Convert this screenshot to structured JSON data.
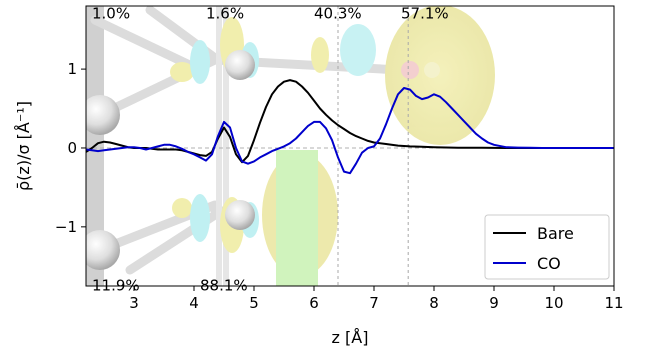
{
  "chart_data": {
    "type": "line",
    "xlabel": "z [Å]",
    "ylabel": "ρ̄(z)/σ [Å⁻¹]",
    "xlim": [
      2.2,
      11.0
    ],
    "ylim": [
      -1.75,
      1.8
    ],
    "xticks": [
      3,
      4,
      5,
      6,
      7,
      8,
      9,
      10,
      11
    ],
    "yticks": [
      -1,
      0,
      1
    ],
    "ytick_labels": [
      "−1",
      "0",
      "1"
    ],
    "grid": false,
    "legend_position": "lower-right",
    "reference_lines": {
      "horizontal_y": 0,
      "vertical_x": [
        6.4,
        7.57
      ]
    },
    "series": [
      {
        "name": "Bare",
        "color": "#000000",
        "x": [
          2.2,
          2.3,
          2.4,
          2.5,
          2.6,
          2.7,
          2.8,
          2.9,
          3.0,
          3.1,
          3.2,
          3.3,
          3.4,
          3.5,
          3.6,
          3.7,
          3.8,
          3.9,
          4.0,
          4.1,
          4.2,
          4.3,
          4.4,
          4.5,
          4.6,
          4.7,
          4.8,
          4.9,
          5.0,
          5.1,
          5.2,
          5.3,
          5.4,
          5.5,
          5.6,
          5.7,
          5.8,
          5.9,
          6.0,
          6.1,
          6.2,
          6.3,
          6.4,
          6.5,
          6.6,
          6.7,
          6.8,
          6.9,
          7.0,
          7.2,
          7.4,
          7.6,
          7.8,
          8.0,
          8.2,
          8.4,
          8.6,
          8.8,
          9.0,
          9.2,
          9.5,
          10.0,
          10.5,
          11.0
        ],
        "values": [
          -0.05,
          0.0,
          0.06,
          0.08,
          0.07,
          0.05,
          0.03,
          0.01,
          0.0,
          0.0,
          0.0,
          -0.01,
          -0.02,
          -0.02,
          -0.02,
          -0.02,
          -0.03,
          -0.05,
          -0.07,
          -0.09,
          -0.1,
          -0.05,
          0.12,
          0.26,
          0.14,
          -0.08,
          -0.18,
          -0.1,
          0.1,
          0.32,
          0.52,
          0.68,
          0.78,
          0.84,
          0.86,
          0.84,
          0.78,
          0.7,
          0.6,
          0.5,
          0.42,
          0.35,
          0.29,
          0.24,
          0.19,
          0.15,
          0.12,
          0.09,
          0.07,
          0.05,
          0.03,
          0.02,
          0.015,
          0.01,
          0.006,
          0.004,
          0.003,
          0.002,
          0.001,
          0.0,
          0.0,
          0.0,
          0.0,
          0.0
        ]
      },
      {
        "name": "CO",
        "color": "#0000cc",
        "x": [
          2.2,
          2.3,
          2.4,
          2.5,
          2.6,
          2.7,
          2.8,
          2.9,
          3.0,
          3.1,
          3.2,
          3.3,
          3.4,
          3.5,
          3.6,
          3.7,
          3.8,
          3.9,
          4.0,
          4.1,
          4.2,
          4.3,
          4.4,
          4.5,
          4.6,
          4.7,
          4.8,
          4.9,
          5.0,
          5.1,
          5.2,
          5.3,
          5.4,
          5.5,
          5.6,
          5.7,
          5.8,
          5.9,
          6.0,
          6.1,
          6.2,
          6.3,
          6.4,
          6.5,
          6.6,
          6.7,
          6.8,
          6.9,
          7.0,
          7.1,
          7.2,
          7.3,
          7.4,
          7.5,
          7.6,
          7.7,
          7.8,
          7.9,
          8.0,
          8.1,
          8.2,
          8.3,
          8.4,
          8.5,
          8.6,
          8.7,
          8.8,
          8.9,
          9.0,
          9.2,
          9.4,
          9.6,
          9.8,
          10.0,
          10.5,
          11.0
        ],
        "values": [
          -0.02,
          -0.03,
          -0.04,
          -0.03,
          -0.02,
          -0.01,
          0.0,
          0.01,
          0.01,
          0.0,
          -0.02,
          0.0,
          0.02,
          0.04,
          0.04,
          0.02,
          -0.01,
          -0.05,
          -0.08,
          -0.12,
          -0.16,
          -0.08,
          0.15,
          0.33,
          0.26,
          0.0,
          -0.17,
          -0.2,
          -0.17,
          -0.12,
          -0.08,
          -0.04,
          -0.01,
          0.02,
          0.06,
          0.12,
          0.2,
          0.28,
          0.33,
          0.33,
          0.25,
          0.1,
          -0.12,
          -0.3,
          -0.32,
          -0.2,
          -0.06,
          0.0,
          0.02,
          0.12,
          0.3,
          0.5,
          0.68,
          0.76,
          0.74,
          0.66,
          0.62,
          0.64,
          0.68,
          0.65,
          0.58,
          0.5,
          0.42,
          0.34,
          0.26,
          0.18,
          0.12,
          0.07,
          0.04,
          0.01,
          0.005,
          0.002,
          0.0,
          0.0,
          0.0,
          0.0
        ]
      }
    ],
    "annotations": [
      {
        "text": "1.0%",
        "x": 2.3,
        "y": 1.72
      },
      {
        "text": "1.6%",
        "x": 4.2,
        "y": 1.72
      },
      {
        "text": "40.3%",
        "x": 6.0,
        "y": 1.72
      },
      {
        "text": "57.1%",
        "x": 7.45,
        "y": 1.72
      },
      {
        "text": "11.9%",
        "x": 2.3,
        "y": -1.73
      },
      {
        "text": "88.1%",
        "x": 4.1,
        "y": -1.73
      }
    ]
  }
}
